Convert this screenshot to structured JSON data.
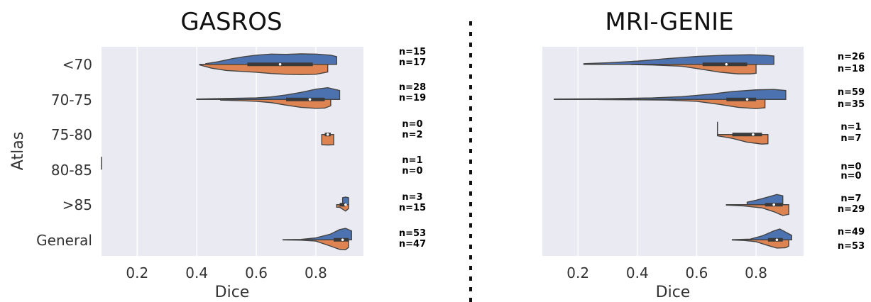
{
  "chart_data": [
    {
      "type": "violin",
      "title": "GASROS",
      "xlabel": "Dice",
      "ylabel": "Atlas",
      "xlim": [
        0.08,
        0.96
      ],
      "xticks": [
        0.2,
        0.4,
        0.6,
        0.8
      ],
      "xtick_labels": [
        "0.2",
        "0.4",
        "0.6",
        "0.8"
      ],
      "grid": true,
      "categories": [
        "<70",
        "70-75",
        "75-80",
        "80-85",
        ">85",
        "General"
      ],
      "series_colors": [
        "#4c72b0",
        "#dd8452"
      ],
      "violins": [
        {
          "category": "<70",
          "upper": {
            "n_label": "n=15",
            "range": [
              0.43,
              0.87
            ],
            "profile": [
              [
                0.43,
                0.05
              ],
              [
                0.47,
                0.2
              ],
              [
                0.52,
                0.45
              ],
              [
                0.56,
                0.6
              ],
              [
                0.6,
                0.72
              ],
              [
                0.65,
                0.8
              ],
              [
                0.7,
                0.78
              ],
              [
                0.75,
                0.82
              ],
              [
                0.8,
                0.8
              ],
              [
                0.85,
                0.72
              ],
              [
                0.87,
                0.6
              ]
            ]
          },
          "lower": {
            "n_label": "n=17",
            "range": [
              0.41,
              0.84
            ],
            "profile": [
              [
                0.41,
                0.05
              ],
              [
                0.45,
                0.3
              ],
              [
                0.5,
                0.48
              ],
              [
                0.55,
                0.55
              ],
              [
                0.6,
                0.62
              ],
              [
                0.65,
                0.72
              ],
              [
                0.7,
                0.78
              ],
              [
                0.75,
                0.8
              ],
              [
                0.8,
                0.78
              ],
              [
                0.84,
                0.6
              ]
            ]
          },
          "quartiles": [
            0.57,
            0.79
          ],
          "median": 0.68
        },
        {
          "category": "70-75",
          "upper": {
            "n_label": "n=28",
            "range": [
              0.4,
              0.88
            ],
            "profile": [
              [
                0.4,
                0.03
              ],
              [
                0.5,
                0.08
              ],
              [
                0.6,
                0.12
              ],
              [
                0.65,
                0.2
              ],
              [
                0.7,
                0.35
              ],
              [
                0.75,
                0.55
              ],
              [
                0.8,
                0.8
              ],
              [
                0.84,
                0.92
              ],
              [
                0.88,
                0.7
              ]
            ]
          },
          "lower": {
            "n_label": "n=19",
            "range": [
              0.48,
              0.85
            ],
            "profile": [
              [
                0.48,
                0.05
              ],
              [
                0.55,
                0.1
              ],
              [
                0.6,
                0.15
              ],
              [
                0.65,
                0.25
              ],
              [
                0.7,
                0.45
              ],
              [
                0.75,
                0.62
              ],
              [
                0.8,
                0.7
              ],
              [
                0.83,
                0.68
              ],
              [
                0.85,
                0.5
              ]
            ]
          },
          "quartiles": [
            0.7,
            0.83
          ],
          "median": 0.78
        },
        {
          "category": "75-80",
          "upper": {
            "n_label": "n=0",
            "range": null,
            "profile": []
          },
          "lower": {
            "n_label": "n=2",
            "range": [
              0.82,
              0.86
            ],
            "profile": [
              [
                0.82,
                0.8
              ],
              [
                0.84,
                0.82
              ],
              [
                0.86,
                0.8
              ]
            ]
          },
          "quartiles": [
            0.83,
            0.85
          ],
          "median": 0.84
        },
        {
          "category": "80-85",
          "upper": {
            "n_label": "n=1",
            "range": [
              0.08,
              0.08
            ],
            "profile": []
          },
          "lower": {
            "n_label": "n=0",
            "range": null,
            "profile": []
          },
          "quartiles": null,
          "median": null
        },
        {
          "category": ">85",
          "upper": {
            "n_label": "n=3",
            "range": [
              0.89,
              0.91
            ],
            "profile": [
              [
                0.89,
                0.55
              ],
              [
                0.9,
                0.6
              ],
              [
                0.91,
                0.55
              ]
            ]
          },
          "lower": {
            "n_label": "n=15",
            "range": [
              0.87,
              0.91
            ],
            "profile": [
              [
                0.87,
                0.2
              ],
              [
                0.88,
                0.2
              ],
              [
                0.89,
                0.35
              ],
              [
                0.9,
                0.5
              ],
              [
                0.91,
                0.3
              ]
            ]
          },
          "quartiles": [
            0.88,
            0.9
          ],
          "median": 0.9
        },
        {
          "category": "General",
          "upper": {
            "n_label": "n=53",
            "range": [
              0.69,
              0.92
            ],
            "profile": [
              [
                0.69,
                0.01
              ],
              [
                0.75,
                0.03
              ],
              [
                0.8,
                0.15
              ],
              [
                0.85,
                0.45
              ],
              [
                0.88,
                0.8
              ],
              [
                0.9,
                0.9
              ],
              [
                0.92,
                0.7
              ]
            ]
          },
          "lower": {
            "n_label": "n=47",
            "range": [
              0.69,
              0.91
            ],
            "profile": [
              [
                0.69,
                0.01
              ],
              [
                0.75,
                0.03
              ],
              [
                0.8,
                0.1
              ],
              [
                0.85,
                0.5
              ],
              [
                0.88,
                0.75
              ],
              [
                0.9,
                0.78
              ],
              [
                0.91,
                0.6
              ]
            ]
          },
          "quartiles": [
            0.86,
            0.91
          ],
          "median": 0.89
        }
      ]
    },
    {
      "type": "violin",
      "title": "MRI-GENIE",
      "xlabel": "Dice",
      "ylabel": "",
      "xlim": [
        0.08,
        0.96
      ],
      "xticks": [
        0.2,
        0.4,
        0.6,
        0.8
      ],
      "xtick_labels": [
        "0.2",
        "0.4",
        "0.6",
        "0.8"
      ],
      "grid": true,
      "categories": [
        "<70",
        "70-75",
        "75-80",
        "80-85",
        ">85",
        "General"
      ],
      "series_colors": [
        "#4c72b0",
        "#dd8452"
      ],
      "violins": [
        {
          "category": "<70",
          "upper": {
            "n_label": "n=26",
            "range": [
              0.22,
              0.86
            ],
            "profile": [
              [
                0.22,
                0.05
              ],
              [
                0.3,
                0.12
              ],
              [
                0.4,
                0.25
              ],
              [
                0.5,
                0.45
              ],
              [
                0.6,
                0.62
              ],
              [
                0.7,
                0.72
              ],
              [
                0.78,
                0.75
              ],
              [
                0.83,
                0.72
              ],
              [
                0.86,
                0.65
              ]
            ]
          },
          "lower": {
            "n_label": "n=18",
            "range": [
              0.38,
              0.8
            ],
            "profile": [
              [
                0.38,
                0.02
              ],
              [
                0.45,
                0.05
              ],
              [
                0.55,
                0.15
              ],
              [
                0.62,
                0.4
              ],
              [
                0.68,
                0.62
              ],
              [
                0.74,
                0.75
              ],
              [
                0.78,
                0.75
              ],
              [
                0.8,
                0.7
              ]
            ]
          },
          "quartiles": [
            0.62,
            0.77
          ],
          "median": 0.7
        },
        {
          "category": "70-75",
          "upper": {
            "n_label": "n=59",
            "range": [
              0.12,
              0.9
            ],
            "profile": [
              [
                0.12,
                0.03
              ],
              [
                0.3,
                0.06
              ],
              [
                0.45,
                0.12
              ],
              [
                0.55,
                0.22
              ],
              [
                0.65,
                0.42
              ],
              [
                0.72,
                0.62
              ],
              [
                0.8,
                0.75
              ],
              [
                0.86,
                0.78
              ],
              [
                0.9,
                0.7
              ]
            ]
          },
          "lower": {
            "n_label": "n=35",
            "range": [
              0.27,
              0.83
            ],
            "profile": [
              [
                0.27,
                0.01
              ],
              [
                0.4,
                0.03
              ],
              [
                0.5,
                0.05
              ],
              [
                0.6,
                0.15
              ],
              [
                0.68,
                0.4
              ],
              [
                0.74,
                0.62
              ],
              [
                0.8,
                0.72
              ],
              [
                0.83,
                0.65
              ]
            ]
          },
          "quartiles": [
            0.7,
            0.8
          ],
          "median": 0.77
        },
        {
          "category": "75-80",
          "upper": {
            "n_label": "n=1",
            "range": [
              0.67,
              0.67
            ],
            "profile": []
          },
          "lower": {
            "n_label": "n=7",
            "range": [
              0.67,
              0.84
            ],
            "profile": [
              [
                0.67,
                0.1
              ],
              [
                0.72,
                0.3
              ],
              [
                0.77,
                0.6
              ],
              [
                0.82,
                0.75
              ],
              [
                0.84,
                0.72
              ]
            ]
          },
          "quartiles": [
            0.72,
            0.82
          ],
          "median": 0.79
        },
        {
          "category": "80-85",
          "upper": {
            "n_label": "n=0",
            "range": null,
            "profile": []
          },
          "lower": {
            "n_label": "n=0",
            "range": null,
            "profile": []
          },
          "quartiles": null,
          "median": null
        },
        {
          "category": ">85",
          "upper": {
            "n_label": "n=7",
            "range": [
              0.77,
              0.89
            ],
            "profile": [
              [
                0.77,
                0.2
              ],
              [
                0.8,
                0.35
              ],
              [
                0.84,
                0.6
              ],
              [
                0.87,
                0.8
              ],
              [
                0.89,
                0.7
              ]
            ]
          },
          "lower": {
            "n_label": "n=29",
            "range": [
              0.7,
              0.91
            ],
            "profile": [
              [
                0.7,
                0.03
              ],
              [
                0.76,
                0.1
              ],
              [
                0.82,
                0.25
              ],
              [
                0.86,
                0.55
              ],
              [
                0.89,
                0.85
              ],
              [
                0.91,
                0.75
              ]
            ]
          },
          "quartiles": [
            0.83,
            0.89
          ],
          "median": 0.86
        },
        {
          "category": "General",
          "upper": {
            "n_label": "n=49",
            "range": [
              0.72,
              0.92
            ],
            "profile": [
              [
                0.72,
                0.01
              ],
              [
                0.78,
                0.05
              ],
              [
                0.82,
                0.3
              ],
              [
                0.86,
                0.7
              ],
              [
                0.88,
                0.85
              ],
              [
                0.9,
                0.6
              ],
              [
                0.92,
                0.35
              ]
            ]
          },
          "lower": {
            "n_label": "n=53",
            "range": [
              0.72,
              0.91
            ],
            "profile": [
              [
                0.72,
                0.02
              ],
              [
                0.76,
                0.05
              ],
              [
                0.8,
                0.15
              ],
              [
                0.84,
                0.45
              ],
              [
                0.87,
                0.65
              ],
              [
                0.9,
                0.62
              ],
              [
                0.91,
                0.5
              ]
            ]
          },
          "quartiles": [
            0.84,
            0.89
          ],
          "median": 0.87
        }
      ]
    }
  ]
}
